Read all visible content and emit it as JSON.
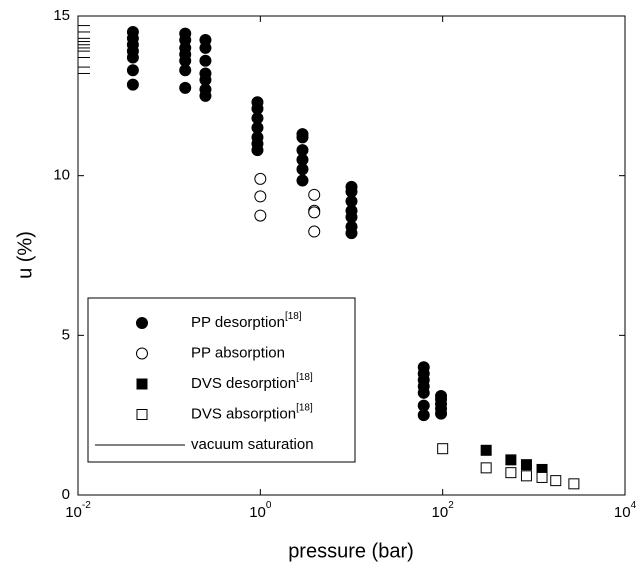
{
  "chart_data": {
    "type": "scatter",
    "xlabel": "pressure (bar)",
    "ylabel": "u (%)",
    "xscale": "log",
    "xlim": [
      0.01,
      10000
    ],
    "xticks": [
      {
        "value": 0.01,
        "label": "10",
        "exponent": "-2"
      },
      {
        "value": 1,
        "label": "10",
        "exponent": "0"
      },
      {
        "value": 100,
        "label": "10",
        "exponent": "2"
      },
      {
        "value": 10000,
        "label": "10",
        "exponent": "4"
      }
    ],
    "ylim": [
      0,
      15
    ],
    "yticks": [
      0,
      5,
      10,
      15
    ],
    "legend_loc": "lower left",
    "series": [
      {
        "name": "PP desorption",
        "reference": "[18]",
        "marker": "circle",
        "filled": true,
        "color": "#000000",
        "x": [
          0.04,
          0.04,
          0.04,
          0.04,
          0.04,
          0.04,
          0.04,
          0.15,
          0.15,
          0.15,
          0.15,
          0.15,
          0.15,
          0.15,
          0.25,
          0.25,
          0.25,
          0.25,
          0.25,
          0.25,
          0.25,
          0.93,
          0.93,
          0.93,
          0.93,
          0.93,
          0.93,
          0.93,
          2.9,
          2.9,
          2.9,
          2.9,
          2.9,
          2.9,
          10,
          10,
          10,
          10,
          10,
          10,
          10,
          62,
          62,
          62,
          62,
          62,
          62,
          62,
          96,
          96,
          96,
          96,
          96
        ],
        "values": [
          14.5,
          14.3,
          14.1,
          13.9,
          13.7,
          13.3,
          12.85,
          14.45,
          14.25,
          14.0,
          13.8,
          13.6,
          13.3,
          12.75,
          14.25,
          14.0,
          13.6,
          13.2,
          13.0,
          12.7,
          12.5,
          12.3,
          12.1,
          11.8,
          11.5,
          11.2,
          11.0,
          10.8,
          11.3,
          11.2,
          10.8,
          10.5,
          10.2,
          9.85,
          9.65,
          9.5,
          9.2,
          8.9,
          8.7,
          8.4,
          8.2,
          4.0,
          3.8,
          3.6,
          3.4,
          3.2,
          2.8,
          2.5,
          3.1,
          3.0,
          2.85,
          2.7,
          2.55
        ]
      },
      {
        "name": "PP absorption",
        "marker": "circle",
        "filled": false,
        "color": "#000000",
        "x": [
          1,
          1,
          1,
          3.9,
          3.9,
          3.9,
          3.9
        ],
        "values": [
          9.9,
          9.35,
          8.75,
          9.4,
          8.9,
          8.85,
          8.25
        ]
      },
      {
        "name": "DVS desorption",
        "reference": "[18]",
        "marker": "square",
        "filled": true,
        "color": "#000000",
        "x": [
          300,
          560,
          830,
          1230
        ],
        "values": [
          1.4,
          1.1,
          0.95,
          0.8
        ]
      },
      {
        "name": "DVS absorption",
        "reference": "[18]",
        "marker": "square",
        "filled": false,
        "color": "#000000",
        "x": [
          100,
          300,
          560,
          830,
          1230,
          1740,
          2750
        ],
        "values": [
          1.45,
          0.85,
          0.7,
          0.6,
          0.55,
          0.45,
          0.35
        ]
      },
      {
        "name": "vacuum saturation",
        "marker": "line",
        "color": "#000000",
        "values": [
          14.7,
          14.5,
          14.3,
          14.2,
          14.1,
          14.0,
          13.9,
          13.7,
          13.4,
          13.2
        ]
      }
    ]
  }
}
